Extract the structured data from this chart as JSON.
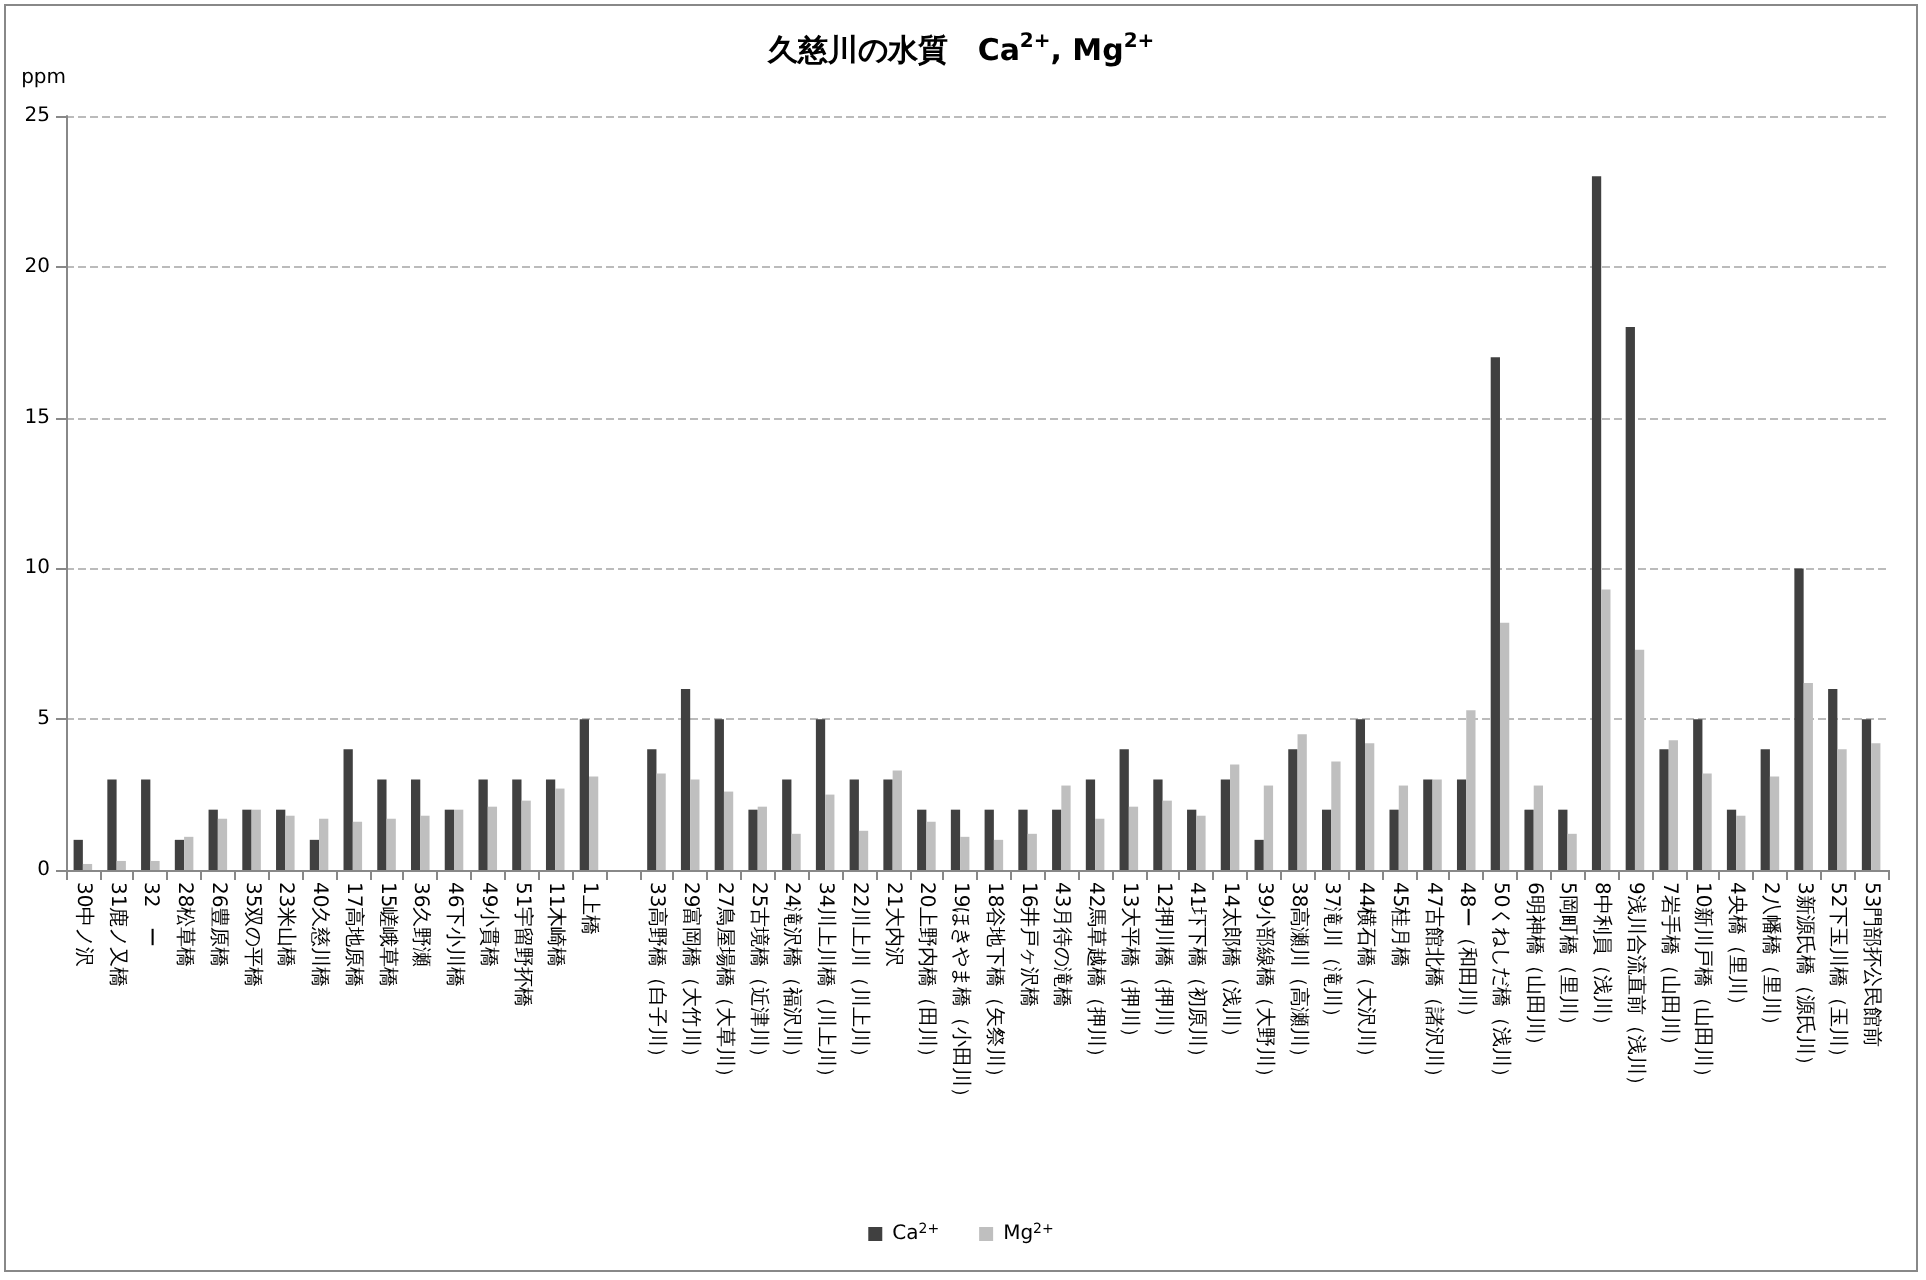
{
  "chart_data": {
    "type": "bar",
    "title": "久慈川の水質　Ca$^{2+}$, Mg$^{2+}$",
    "ylabel": "ppm",
    "categories": [
      "30中ノ沢",
      "31鹿ノ又橋",
      "32　ー",
      "28松草橋",
      "26豊原橋",
      "35双の平橋",
      "23米山橋",
      "40久慈川橋",
      "17高地原橋",
      "15嵯峨草橋",
      "36久野瀬",
      "46下小川橋",
      "49小貫橋",
      "51宇留野抔橋",
      "11木崎橋",
      "1上橋",
      null,
      "33高野橋（白子川）",
      "29富岡橋（大竹川）",
      "27鳥屋場橋（大草川）",
      "25古境橋（近津川）",
      "24滝沢橋（福沢川）",
      "34川上川橋（川上川）",
      "22川上川（川上川）",
      "21大内沢",
      "20上野内橋（田川）",
      "19ほきやま橋（小田川）",
      "18谷地下橋（矢祭川）",
      "16井戸ヶ沢橋",
      "43月待の滝橋",
      "42馬草越橋（押川）",
      "13大平橋（押川）",
      "12押川橋（押川）",
      "41圷下橋（初原川）",
      "14太郎橋（浅川）",
      "39小部線橋（大野川）",
      "38高瀬川（高瀬川）",
      "37滝川（滝川）",
      "44横石橋（大沢川）",
      "45桂月橋",
      "47古館北橋（諸沢川）",
      "48ー（和田川）",
      "50くねしだ橋（浅川）",
      "6明神橋（山田川）",
      "5岡町橋（里川）",
      "8中利員（浅川）",
      "9浅川合流直前（浅川）",
      "7岩手橋（山田川）",
      "10新川戸橋（山田川）",
      "4央橋（里川）",
      "2八幡橋（里川）",
      "3新源氏橋（源氏川）",
      "52下玉川橋（玉川）",
      "53門部抔公民館前"
    ],
    "series": [
      {
        "name": "Ca$^{2+}$",
        "color": "#404040",
        "values": [
          1,
          3,
          3,
          1,
          2,
          2,
          2,
          1,
          4,
          3,
          3,
          2,
          3,
          3,
          3,
          5,
          null,
          4,
          6,
          5,
          2,
          3,
          5,
          3,
          3,
          2,
          2,
          2,
          2,
          2,
          3,
          4,
          3,
          2,
          3,
          1,
          4,
          2,
          5,
          2,
          3,
          3,
          17,
          2,
          2,
          23,
          18,
          4,
          5,
          2,
          4,
          10,
          6,
          5
        ]
      },
      {
        "name": "Mg$^{2+}$",
        "color": "#bfbfbf",
        "values": [
          0.2,
          0.3,
          0.3,
          1.1,
          1.7,
          2,
          1.8,
          1.7,
          1.6,
          1.7,
          1.8,
          2,
          2.1,
          2.3,
          2.7,
          3.1,
          null,
          3.2,
          3,
          2.6,
          2.1,
          1.2,
          2.5,
          1.3,
          3.3,
          1.6,
          1.1,
          1,
          1.2,
          2.8,
          1.7,
          2.1,
          2.3,
          1.8,
          3.5,
          2.8,
          4.5,
          3.6,
          4.2,
          2.8,
          3,
          5.3,
          8.2,
          2.8,
          1.2,
          9.3,
          7.3,
          4.3,
          3.2,
          1.8,
          3.1,
          6.2,
          4,
          4.2
        ]
      }
    ],
    "ylim": [
      0,
      25
    ],
    "yticks": [
      0,
      5,
      10,
      15,
      20,
      25
    ],
    "grid": "y",
    "legend": "bottom"
  }
}
